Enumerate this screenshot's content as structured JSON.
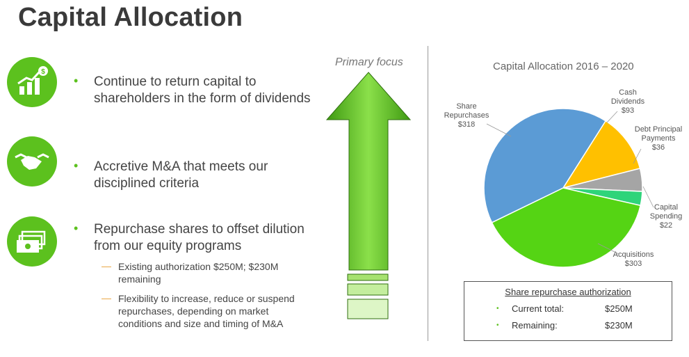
{
  "title": "Capital Allocation",
  "primary_focus": "Primary focus",
  "bullets": [
    {
      "text_line1": "Continue to return capital to",
      "text_line2": "shareholders in the form of dividends",
      "icon": "rising-bars-dollar-icon"
    },
    {
      "text_line1": "Accretive M&A that meets our",
      "text_line2": "disciplined criteria",
      "icon": "handshake-icon"
    },
    {
      "text_line1": "Repurchase shares to offset dilution",
      "text_line2": "from our equity programs",
      "icon": "cash-stack-icon"
    }
  ],
  "sub_bullets": [
    {
      "line1": "Existing authorization $250M; $230M",
      "line2": "remaining"
    },
    {
      "line1": "Flexibility to increase, reduce or suspend",
      "line2": "repurchases, depending on market",
      "line3": "conditions and size and timing of M&A"
    }
  ],
  "colors": {
    "green": "#5cc11e",
    "blue": "#5b9bd5",
    "yellow": "#ffc000",
    "gray": "#a5a5a5",
    "teal": "#2ed47a",
    "lime": "#55d414",
    "dash": "#e8a33b"
  },
  "chart_data": {
    "type": "pie",
    "title": "Capital Allocation 2016 – 2020",
    "slices": [
      {
        "label": "Share Repurchases",
        "value": 318,
        "value_label": "$318",
        "color": "#5b9bd5"
      },
      {
        "label": "Cash Dividends",
        "value": 93,
        "value_label": "$93",
        "color": "#ffc000"
      },
      {
        "label": "Debt Principal Payments",
        "value": 36,
        "value_label": "$36",
        "color": "#a5a5a5"
      },
      {
        "label": "Capital Spending",
        "value": 22,
        "value_label": "$22",
        "color": "#2ed47a"
      },
      {
        "label": "Acquisitions",
        "value": 303,
        "value_label": "$303",
        "color": "#55d414"
      }
    ]
  },
  "pie_labels": {
    "repurchases": [
      "Share",
      "Repurchases",
      "$318"
    ],
    "dividends": [
      "Cash",
      "Dividends",
      "$93"
    ],
    "debt": [
      "Debt Principal",
      "Payments",
      "$36"
    ],
    "capex": [
      "Capital",
      "Spending",
      "$22"
    ],
    "acquisitions": [
      "Acquisitions",
      "$303"
    ]
  },
  "authorization": {
    "title": "Share repurchase authorization",
    "rows": [
      {
        "label": "Current total:",
        "value": "$250M"
      },
      {
        "label": "Remaining:",
        "value": "$230M"
      }
    ]
  }
}
